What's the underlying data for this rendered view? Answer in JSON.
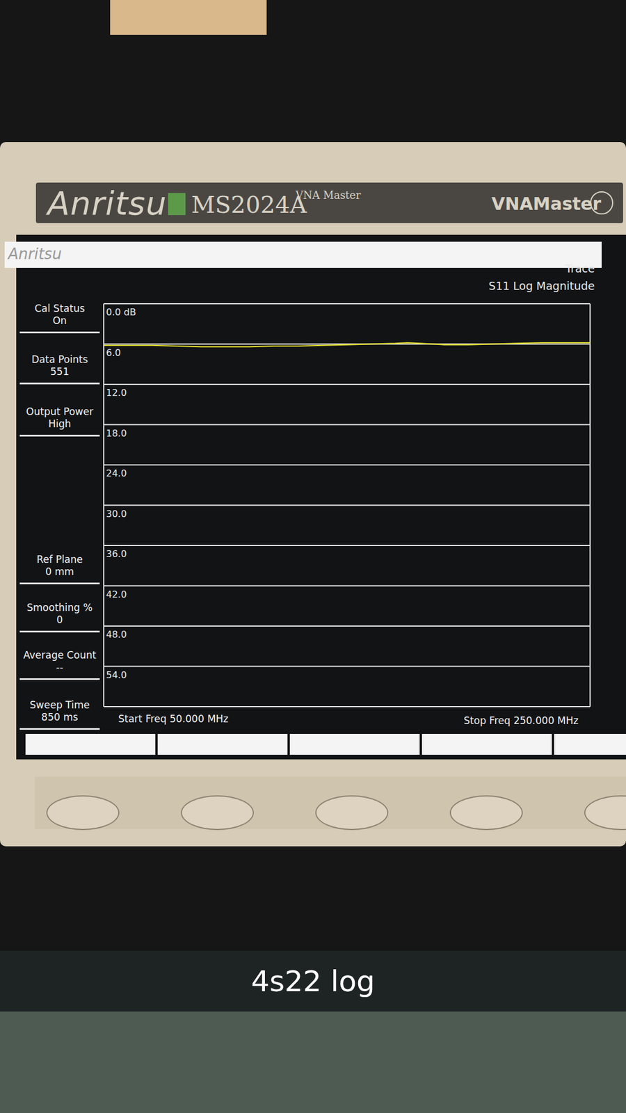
{
  "device": {
    "brand": "Anritsu",
    "model": "MS2024A",
    "model_suffix": "VNA Master",
    "series_name": "VNAMaster"
  },
  "screen": {
    "header": "Anritsu",
    "trace_label": "Trace",
    "side_panel": [
      {
        "label": "Cal Status",
        "value": "On"
      },
      {
        "label": "Data Points",
        "value": "551"
      },
      {
        "label": "Output Power",
        "value": "High"
      },
      {
        "label": "Ref Plane",
        "value": "0 mm"
      },
      {
        "label": "Smoothing %",
        "value": "0"
      },
      {
        "label": "Average Count",
        "value": "--"
      },
      {
        "label": "Sweep Time",
        "value": "850 ms"
      }
    ],
    "start_label": "Start Freq 50.000 MHz",
    "stop_label": "Stop Freq 250.000 MHz"
  },
  "caption": "4s22 log",
  "chart_data": {
    "type": "line",
    "title": "S11 Log Magnitude",
    "x": [
      50,
      60,
      70,
      80,
      90,
      100,
      110,
      120,
      130,
      140,
      150,
      160,
      170,
      175,
      180,
      190,
      200,
      210,
      220,
      230,
      240,
      250
    ],
    "values": [
      6.2,
      6.2,
      6.2,
      6.3,
      6.4,
      6.4,
      6.4,
      6.3,
      6.3,
      6.2,
      6.1,
      6.0,
      5.9,
      5.8,
      5.9,
      6.1,
      6.1,
      6.0,
      5.9,
      5.8,
      5.8,
      5.8
    ],
    "color": "#e6e22a",
    "xlim": [
      50,
      250
    ],
    "xticks": [
      50,
      70,
      90,
      110,
      130,
      150,
      170,
      190,
      210,
      230,
      250
    ],
    "ylim": [
      0,
      60
    ],
    "yticks": [
      {
        "value": 0,
        "label": "0.0 dB"
      },
      {
        "value": 6,
        "label": "6.0"
      },
      {
        "value": 12,
        "label": "12.0"
      },
      {
        "value": 18,
        "label": "18.0"
      },
      {
        "value": 24,
        "label": "24.0"
      },
      {
        "value": 30,
        "label": "30.0"
      },
      {
        "value": 36,
        "label": "36.0"
      },
      {
        "value": 42,
        "label": "42.0"
      },
      {
        "value": 48,
        "label": "48.0"
      },
      {
        "value": 54,
        "label": "54.0"
      }
    ],
    "grid": true,
    "tick_labels": "y"
  }
}
